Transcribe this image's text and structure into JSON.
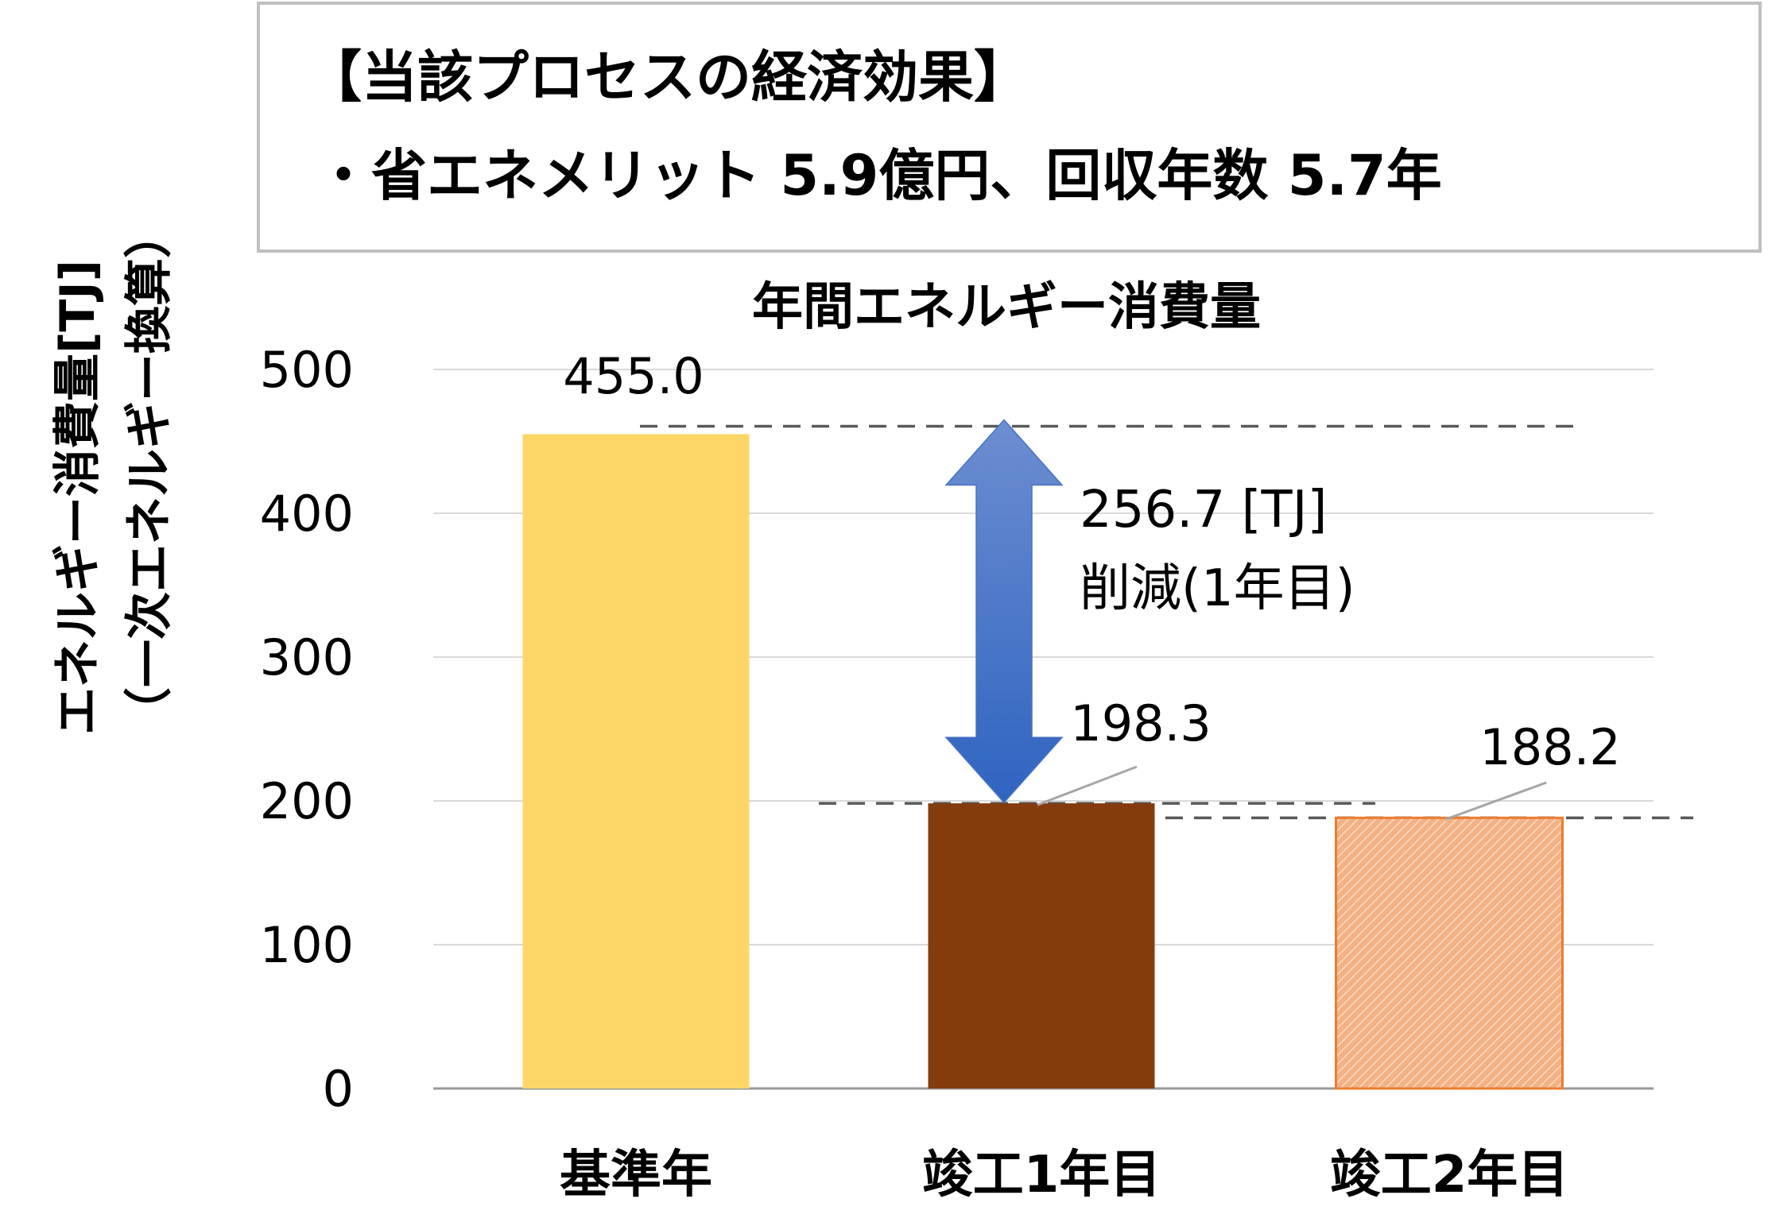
{
  "infobox": {
    "line1": "【当該プロセスの経済効果】",
    "line2": "・省エネメリット 5.9億円、回収年数 5.7年"
  },
  "chart_data": {
    "type": "bar",
    "title": "年間エネルギー消費量",
    "ylabel_lines": [
      "エネルギー消費量[TJ]",
      "（一次エネルギー換算）"
    ],
    "xlabel": "",
    "categories": [
      "基準年",
      "竣工1年目",
      "竣工2年目"
    ],
    "values": [
      455.0,
      198.3,
      188.2
    ],
    "data_labels": [
      "455.0",
      "198.3",
      "188.2"
    ],
    "ylim": [
      0,
      500
    ],
    "yticks": [
      0,
      100,
      200,
      300,
      400,
      500
    ],
    "grid": true,
    "legend": "none",
    "colors": [
      "#FCD667",
      "#843C0C",
      "#F4B183"
    ],
    "bar3_border": "#ED7D31",
    "gridline_color": "#d9d9d9",
    "axis_color": "#999999",
    "reference_lines": [
      455.0,
      198.3,
      188.2
    ],
    "annotation": {
      "line1": "256.7 [TJ]",
      "line2": "削減(1年目)",
      "arrow_color_top": "#6C8ED1",
      "arrow_color_bottom": "#2F64C0"
    }
  }
}
